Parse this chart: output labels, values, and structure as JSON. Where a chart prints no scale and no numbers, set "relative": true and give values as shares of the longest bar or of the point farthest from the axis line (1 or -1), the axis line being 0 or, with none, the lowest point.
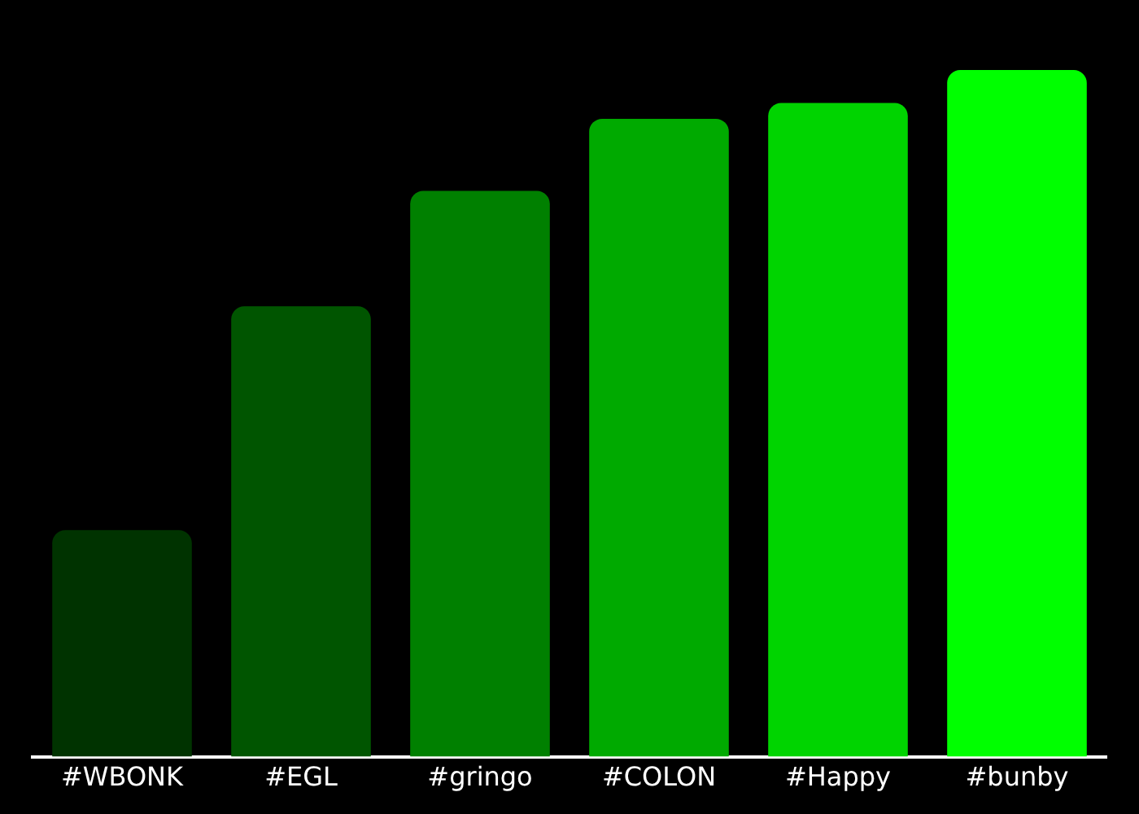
{
  "chart_data": {
    "type": "bar",
    "relative": true,
    "categories": [
      "#WBONK",
      "#EGL",
      "#gringo",
      "#COLON",
      "#Happy",
      "#bunby"
    ],
    "values": [
      0.33,
      0.656,
      0.824,
      0.929,
      0.952,
      1
    ],
    "colors": [
      "#003300",
      "#005500",
      "#008000",
      "#00aa00",
      "#00d400",
      "#00ff00"
    ],
    "legend": false
  }
}
